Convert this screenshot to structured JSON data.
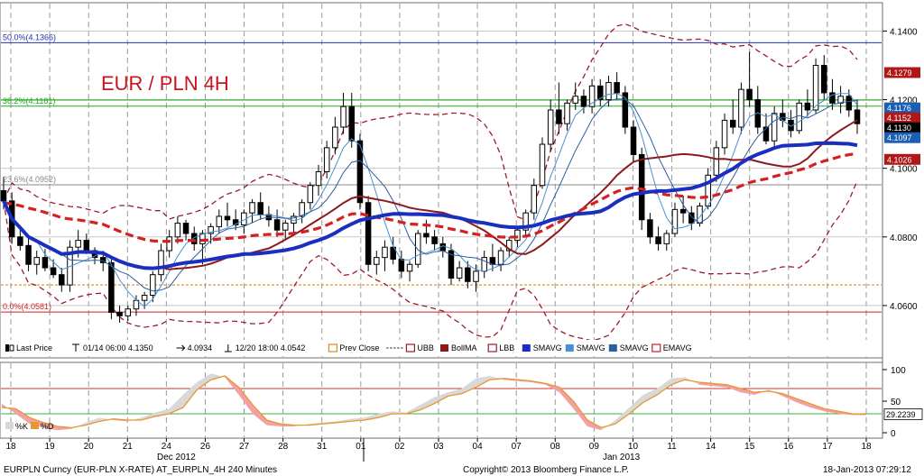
{
  "chart_data": {
    "type": "candlestick",
    "title": "EUR / PLN 4H",
    "y_range": [
      4.045,
      4.148
    ],
    "y_ticks": [
      "4.1400",
      "4.1200",
      "4.1000",
      "4.0800",
      "4.0600"
    ],
    "x_labels": [
      "18",
      "19",
      "20",
      "21",
      "24",
      "26",
      "27",
      "28",
      "31",
      "01",
      "02",
      "03",
      "04",
      "07",
      "08",
      "09",
      "10",
      "11",
      "14",
      "15",
      "16",
      "17",
      "18"
    ],
    "month_labels": [
      "Dec 2012",
      "Jan 2013"
    ],
    "fib_levels": [
      {
        "label": "50.0%(4.1366)",
        "value": 4.1366,
        "color": "#2233aa"
      },
      {
        "label": "38.2%(4.1181)",
        "value": 4.1181,
        "color": "#22aa22"
      },
      {
        "label": "23.6%(4.0952)",
        "value": 4.0952,
        "color": "#888888"
      },
      {
        "label": "0.0%(4.0581)",
        "value": 4.0581,
        "color": "#cc2222"
      }
    ],
    "horizontal_lines": [
      {
        "value": 4.1199,
        "color": "#22aa22"
      },
      {
        "value": 4.066,
        "color": "#e08a1e",
        "dashed": true
      }
    ],
    "price_tags": [
      {
        "label": "4.1279",
        "value": 4.1279,
        "color": "#b01818"
      },
      {
        "label": "4.1176",
        "value": 4.1176,
        "color": "#1a5fb4"
      },
      {
        "label": "4.1152",
        "value": 4.1152,
        "color": "#b01818"
      },
      {
        "label": "4.1130",
        "value": 4.113,
        "color": "#000000"
      },
      {
        "label": "4.1097",
        "value": 4.1097,
        "color": "#1a5fb4"
      },
      {
        "label": "4.1026",
        "value": 4.1026,
        "color": "#b01818"
      }
    ],
    "candles": [
      [
        4.0935,
        4.0975,
        4.088,
        4.0905
      ],
      [
        4.0905,
        4.093,
        4.078,
        4.08
      ],
      [
        4.08,
        4.083,
        4.076,
        4.0775
      ],
      [
        4.0775,
        4.08,
        4.07,
        4.072
      ],
      [
        4.072,
        4.076,
        4.069,
        4.074
      ],
      [
        4.074,
        4.0765,
        4.07,
        4.071
      ],
      [
        4.071,
        4.0735,
        4.068,
        4.069
      ],
      [
        4.069,
        4.071,
        4.064,
        4.066
      ],
      [
        4.066,
        4.079,
        4.064,
        4.077
      ],
      [
        4.077,
        4.082,
        4.074,
        4.079
      ],
      [
        4.079,
        4.081,
        4.075,
        4.076
      ],
      [
        4.076,
        4.077,
        4.072,
        4.074
      ],
      [
        4.074,
        4.076,
        4.07,
        4.0725
      ],
      [
        4.0725,
        4.074,
        4.056,
        4.058
      ],
      [
        4.058,
        4.06,
        4.055,
        4.057
      ],
      [
        4.057,
        4.06,
        4.0555,
        4.059
      ],
      [
        4.059,
        4.063,
        4.057,
        4.0615
      ],
      [
        4.0615,
        4.064,
        4.059,
        4.063
      ],
      [
        4.063,
        4.07,
        4.061,
        4.069
      ],
      [
        4.069,
        4.078,
        4.067,
        4.076
      ],
      [
        4.076,
        4.082,
        4.074,
        4.08
      ],
      [
        4.08,
        4.086,
        4.078,
        4.084
      ],
      [
        4.084,
        4.085,
        4.079,
        4.081
      ],
      [
        4.081,
        4.083,
        4.076,
        4.078
      ],
      [
        4.078,
        4.082,
        4.072,
        4.081
      ],
      [
        4.081,
        4.084,
        4.078,
        4.083
      ],
      [
        4.083,
        4.088,
        4.081,
        4.086
      ],
      [
        4.086,
        4.09,
        4.083,
        4.085
      ],
      [
        4.085,
        4.088,
        4.082,
        4.0835
      ],
      [
        4.0835,
        4.088,
        4.081,
        4.087
      ],
      [
        4.087,
        4.091,
        4.084,
        4.09
      ],
      [
        4.09,
        4.093,
        4.085,
        4.0865
      ],
      [
        4.0865,
        4.089,
        4.083,
        4.085
      ],
      [
        4.085,
        4.088,
        4.08,
        4.082
      ],
      [
        4.082,
        4.085,
        4.079,
        4.084
      ],
      [
        4.084,
        4.087,
        4.081,
        4.086
      ],
      [
        4.086,
        4.091,
        4.084,
        4.09
      ],
      [
        4.09,
        4.096,
        4.088,
        4.095
      ],
      [
        4.095,
        4.101,
        4.092,
        4.099
      ],
      [
        4.099,
        4.108,
        4.097,
        4.106
      ],
      [
        4.106,
        4.115,
        4.104,
        4.112
      ],
      [
        4.112,
        4.122,
        4.11,
        4.118
      ],
      [
        4.118,
        4.122,
        4.106,
        4.108
      ],
      [
        4.108,
        4.11,
        4.088,
        4.09
      ],
      [
        4.09,
        4.092,
        4.07,
        4.072
      ],
      [
        4.072,
        4.076,
        4.069,
        4.074
      ],
      [
        4.074,
        4.079,
        4.07,
        4.077
      ],
      [
        4.077,
        4.08,
        4.072,
        4.0735
      ],
      [
        4.0735,
        4.076,
        4.068,
        4.07
      ],
      [
        4.07,
        4.073,
        4.067,
        4.072
      ],
      [
        4.072,
        4.082,
        4.071,
        4.081
      ],
      [
        4.081,
        4.085,
        4.078,
        4.08
      ],
      [
        4.08,
        4.082,
        4.076,
        4.078
      ],
      [
        4.078,
        4.08,
        4.074,
        4.076
      ],
      [
        4.076,
        4.078,
        4.066,
        4.068
      ],
      [
        4.068,
        4.073,
        4.067,
        4.071
      ],
      [
        4.071,
        4.073,
        4.065,
        4.067
      ],
      [
        4.067,
        4.072,
        4.064,
        4.07
      ],
      [
        4.07,
        4.076,
        4.068,
        4.074
      ],
      [
        4.074,
        4.078,
        4.07,
        4.072
      ],
      [
        4.072,
        4.077,
        4.07,
        4.076
      ],
      [
        4.076,
        4.08,
        4.074,
        4.079
      ],
      [
        4.079,
        4.083,
        4.077,
        4.082
      ],
      [
        4.082,
        4.088,
        4.08,
        4.087
      ],
      [
        4.087,
        4.097,
        4.085,
        4.095
      ],
      [
        4.095,
        4.109,
        4.094,
        4.107
      ],
      [
        4.107,
        4.12,
        4.105,
        4.117
      ],
      [
        4.117,
        4.125,
        4.11,
        4.113
      ],
      [
        4.113,
        4.12,
        4.111,
        4.119
      ],
      [
        4.119,
        4.125,
        4.117,
        4.121
      ],
      [
        4.121,
        4.123,
        4.116,
        4.118
      ],
      [
        4.118,
        4.126,
        4.116,
        4.124
      ],
      [
        4.124,
        4.126,
        4.118,
        4.12
      ],
      [
        4.12,
        4.127,
        4.118,
        4.125
      ],
      [
        4.125,
        4.128,
        4.12,
        4.122
      ],
      [
        4.122,
        4.124,
        4.11,
        4.112
      ],
      [
        4.112,
        4.114,
        4.102,
        4.104
      ],
      [
        4.104,
        4.106,
        4.082,
        4.085
      ],
      [
        4.085,
        4.087,
        4.078,
        4.08
      ],
      [
        4.08,
        4.083,
        4.076,
        4.078
      ],
      [
        4.078,
        4.082,
        4.076,
        4.081
      ],
      [
        4.081,
        4.09,
        4.08,
        4.088
      ],
      [
        4.088,
        4.092,
        4.084,
        4.087
      ],
      [
        4.087,
        4.089,
        4.082,
        4.084
      ],
      [
        4.084,
        4.09,
        4.083,
        4.089
      ],
      [
        4.089,
        4.1,
        4.088,
        4.098
      ],
      [
        4.098,
        4.108,
        4.096,
        4.106
      ],
      [
        4.106,
        4.116,
        4.104,
        4.114
      ],
      [
        4.114,
        4.12,
        4.11,
        4.112
      ],
      [
        4.112,
        4.125,
        4.11,
        4.123
      ],
      [
        4.123,
        4.134,
        4.118,
        4.12
      ],
      [
        4.12,
        4.124,
        4.11,
        4.112
      ],
      [
        4.112,
        4.116,
        4.107,
        4.108
      ],
      [
        4.108,
        4.118,
        4.106,
        4.116
      ],
      [
        4.116,
        4.12,
        4.112,
        4.114
      ],
      [
        4.114,
        4.117,
        4.109,
        4.111
      ],
      [
        4.111,
        4.12,
        4.11,
        4.119
      ],
      [
        4.119,
        4.123,
        4.115,
        4.117
      ],
      [
        4.117,
        4.132,
        4.116,
        4.13
      ],
      [
        4.13,
        4.133,
        4.12,
        4.122
      ],
      [
        4.122,
        4.126,
        4.117,
        4.119
      ],
      [
        4.119,
        4.124,
        4.116,
        4.121
      ],
      [
        4.121,
        4.123,
        4.115,
        4.117
      ],
      [
        4.117,
        4.12,
        4.11,
        4.113
      ]
    ],
    "legend": [
      {
        "label": "Last Price",
        "marker": "candle",
        "color": "#000000"
      },
      {
        "label": "01/14 06:00 4.1350",
        "marker": "T",
        "color": "#000000"
      },
      {
        "label": "4.0934",
        "marker": "arrow",
        "color": "#000000"
      },
      {
        "label": "12/20 18:00 4.0542",
        "marker": "bottom",
        "color": "#000000"
      },
      {
        "label": "Prev Close",
        "marker": "box",
        "color": "#e08a1e"
      },
      {
        "label": "UBB",
        "marker": "box",
        "color": "#9b1c2a"
      },
      {
        "label": "BollMA",
        "marker": "solid",
        "color": "#8b1a1a"
      },
      {
        "label": "LBB",
        "marker": "box",
        "color": "#9b1c2a"
      },
      {
        "label": "SMAVG",
        "marker": "solid",
        "color": "#1a2fbf"
      },
      {
        "label": "SMAVG",
        "marker": "solid",
        "color": "#4a90d0"
      },
      {
        "label": "SMAVG",
        "marker": "solid",
        "color": "#2a5f9e"
      },
      {
        "label": "EMAVG",
        "marker": "box",
        "color": "#c41e1e"
      }
    ],
    "oscillator": {
      "y_ticks": [
        "100",
        "50",
        "0"
      ],
      "tags": [
        {
          "label": "29.2239",
          "value": 29.2239
        }
      ],
      "legend": [
        "%K",
        "%D"
      ],
      "levels": [
        70,
        30
      ],
      "d_values": [
        40,
        38,
        24,
        16,
        10,
        8,
        12,
        18,
        22,
        20,
        20,
        26,
        30,
        40,
        68,
        84,
        90,
        72,
        44,
        20,
        14,
        12,
        12,
        14,
        16,
        18,
        20,
        24,
        30,
        30,
        36,
        46,
        58,
        62,
        72,
        84,
        86,
        84,
        82,
        78,
        72,
        50,
        20,
        8,
        14,
        30,
        48,
        60,
        76,
        84,
        80,
        78,
        76,
        70,
        64,
        66,
        62,
        54,
        46,
        38,
        34,
        30,
        29.2239
      ],
      "k_values": [
        46,
        30,
        14,
        8,
        4,
        6,
        16,
        24,
        20,
        18,
        24,
        32,
        38,
        60,
        80,
        94,
        88,
        60,
        30,
        12,
        10,
        10,
        14,
        16,
        18,
        22,
        24,
        30,
        34,
        32,
        44,
        56,
        64,
        70,
        86,
        90,
        84,
        82,
        80,
        76,
        64,
        38,
        10,
        4,
        20,
        40,
        60,
        70,
        86,
        88,
        76,
        74,
        72,
        64,
        60,
        68,
        58,
        48,
        40,
        34,
        30,
        28,
        28
      ]
    }
  },
  "footer": {
    "left": "EURPLN Curncy (EUR-PLN X-RATE) AT_EURPLN_4H  240 Minutes",
    "center": "Copyright© 2013 Bloomberg Finance L.P.",
    "right": "18-Jan-2013 07:29:12"
  }
}
